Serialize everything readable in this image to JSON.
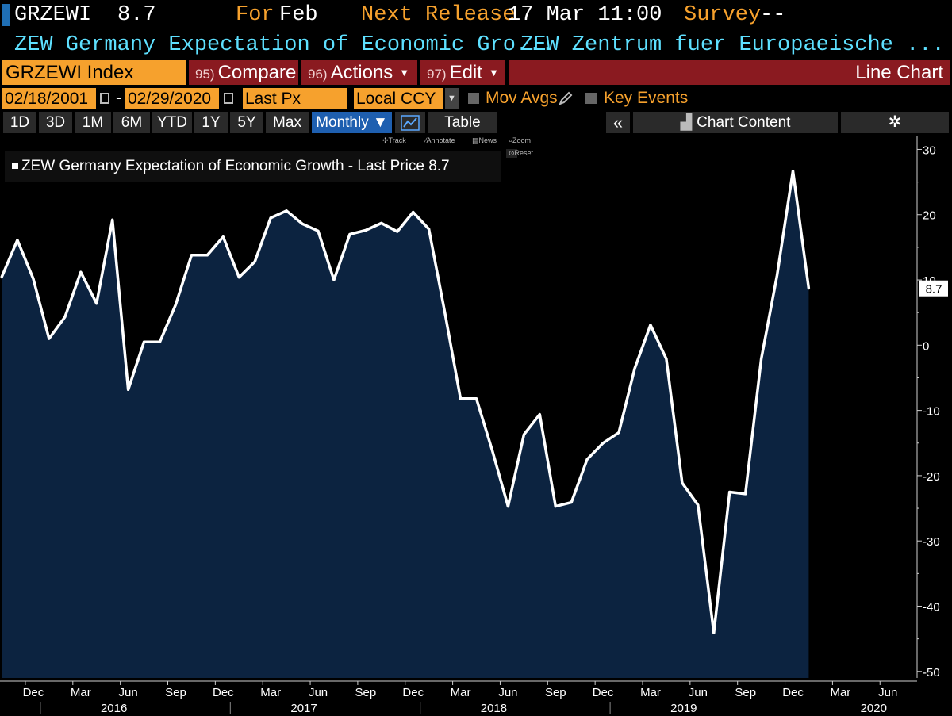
{
  "header": {
    "ticker": "GRZEWI",
    "value": "8.7",
    "for_label": "For",
    "for_value": "Feb",
    "next_release_label": "Next Release",
    "next_release_value": "17 Mar 11:00",
    "survey_label": "Survey",
    "survey_value": "--",
    "description": "ZEW Germany Expectation of Economic Gro...",
    "source": "ZEW Zentrum fuer Europaeische ..."
  },
  "toolbar": {
    "security": "GRZEWI Index",
    "compare_num": "95)",
    "compare_label": "Compare",
    "actions_num": "96)",
    "actions_label": "Actions",
    "edit_num": "97)",
    "edit_label": "Edit",
    "chart_type": "Line Chart",
    "start_date": "02/18/2001",
    "dash": "-",
    "end_date": "02/29/2020",
    "price_type": "Last Px",
    "currency": "Local CCY",
    "mov_avgs_label": "Mov Avgs",
    "key_events_label": "Key Events",
    "periods": [
      "1D",
      "3D",
      "1M",
      "6M",
      "YTD",
      "1Y",
      "5Y",
      "Max"
    ],
    "frequency": "Monthly ▼",
    "table_label": "Table",
    "collapse_glyph": "«",
    "chart_content_label": "Chart Content",
    "settings_glyph": "✲",
    "tools": [
      "Track",
      "Annotate",
      "News",
      "Zoom",
      "Reset"
    ]
  },
  "colors": {
    "background": "#000000",
    "line": "#ffffff",
    "area": "#0c2340",
    "orange": "#f6a12d",
    "cyan": "#5ee0ff",
    "red": "#8a1a20",
    "blue": "#1e5fb0"
  },
  "chart_data": {
    "type": "area",
    "legend": "ZEW Germany Expectation of Economic Growth - Last Price",
    "legend_value": "8.7",
    "last_value_label": "8.7",
    "ylim": [
      -51,
      32
    ],
    "yticks": [
      30,
      20,
      10,
      0,
      -10,
      -20,
      -30,
      -40,
      -50
    ],
    "x": [
      "2015-11",
      "2015-12",
      "2016-01",
      "2016-02",
      "2016-03",
      "2016-04",
      "2016-05",
      "2016-06",
      "2016-07",
      "2016-08",
      "2016-09",
      "2016-10",
      "2016-11",
      "2016-12",
      "2017-01",
      "2017-02",
      "2017-03",
      "2017-04",
      "2017-05",
      "2017-06",
      "2017-07",
      "2017-08",
      "2017-09",
      "2017-10",
      "2017-11",
      "2017-12",
      "2018-01",
      "2018-02",
      "2018-03",
      "2018-04",
      "2018-05",
      "2018-06",
      "2018-07",
      "2018-08",
      "2018-09",
      "2018-10",
      "2018-11",
      "2018-12",
      "2019-01",
      "2019-02",
      "2019-03",
      "2019-04",
      "2019-05",
      "2019-06",
      "2019-07",
      "2019-08",
      "2019-09",
      "2019-10",
      "2019-11",
      "2019-12",
      "2020-01",
      "2020-02"
    ],
    "values": [
      10.4,
      16.1,
      10.2,
      1.0,
      4.3,
      11.2,
      6.4,
      19.2,
      -6.8,
      0.5,
      0.5,
      6.2,
      13.8,
      13.8,
      16.6,
      10.4,
      12.8,
      19.5,
      20.6,
      18.6,
      17.5,
      10.0,
      17.0,
      17.6,
      18.7,
      17.4,
      20.4,
      17.8,
      5.1,
      -8.2,
      -8.2,
      -16.1,
      -24.7,
      -13.7,
      -10.6,
      -24.7,
      -24.1,
      -17.5,
      -15.0,
      -13.4,
      -3.6,
      3.1,
      -2.1,
      -21.1,
      -24.5,
      -44.1,
      -22.5,
      -22.8,
      -2.1,
      10.7,
      26.7,
      8.7
    ],
    "x_month_labels": [
      "Dec",
      "Mar",
      "Jun",
      "Sep",
      "Dec",
      "Mar",
      "Jun",
      "Sep",
      "Dec",
      "Mar",
      "Jun",
      "Sep",
      "Dec",
      "Mar",
      "Jun",
      "Sep",
      "Dec",
      "Mar",
      "Jun"
    ],
    "x_year_labels": [
      "2016",
      "2017",
      "2018",
      "2019",
      "2020"
    ],
    "grid": false,
    "legend_position": "top-left"
  }
}
